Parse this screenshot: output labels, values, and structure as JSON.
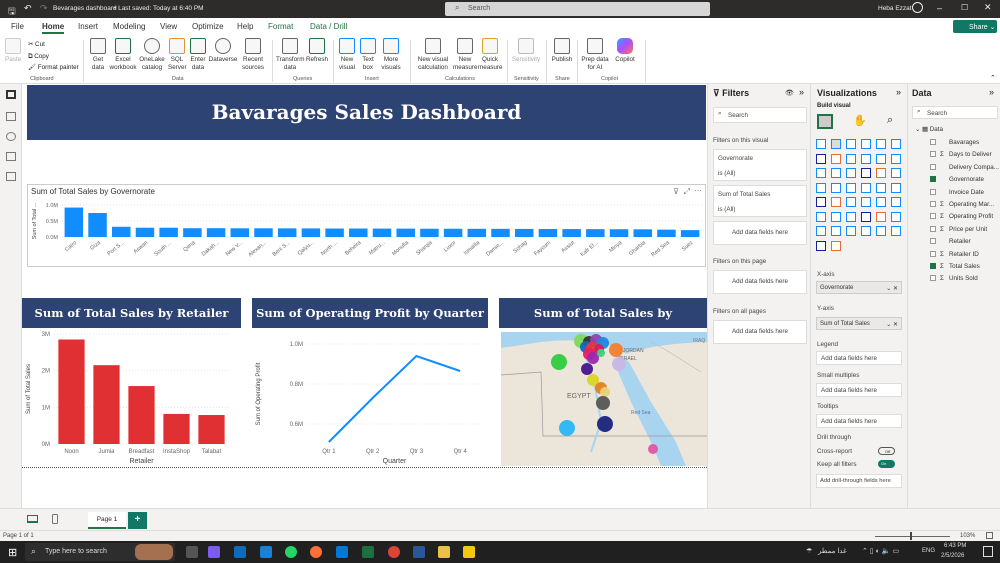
{
  "titlebar": {
    "doc_title": "Bevarages dashboard",
    "saved": "• Last saved: Today at 6:40 PM",
    "search_placeholder": "Search",
    "user": "Heba Ezzat"
  },
  "menu": {
    "tabs": [
      "File",
      "Home",
      "Insert",
      "Modeling",
      "View",
      "Optimize",
      "Help",
      "Format",
      "Data / Drill"
    ],
    "active": "Home",
    "share": "Share"
  },
  "ribbon": {
    "items": [
      "Paste",
      "Get data",
      "Excel workbook",
      "OneLake catalog",
      "SQL Server",
      "Enter data",
      "Dataverse",
      "Recent sources",
      "Transform data",
      "Refresh",
      "New visual",
      "Text box",
      "More visuals",
      "New visual calculation",
      "New measure",
      "Quick measure",
      "Sensitivity",
      "Publish",
      "Prep data for AI",
      "Copilot"
    ],
    "clipboard": [
      "Cut",
      "Copy",
      "Format painter"
    ],
    "groups": [
      "Clipboard",
      "Data",
      "Queries",
      "Insert",
      "Calculations",
      "Sensitivity",
      "Share",
      "Copilot"
    ]
  },
  "report": {
    "title": "Bavarages Sales Dashboard",
    "retailer_banner": "Sum of Total Sales by Retailer",
    "quarter_banner": "Sum of Operating Profit by Quarter",
    "map_banner": "Sum of Total Sales by Governrate",
    "map_labels": [
      "EGYPT",
      "JORDAN",
      "ISRAEL",
      "IRAQ",
      "Red Sea"
    ]
  },
  "chart_data": [
    {
      "type": "bar",
      "title": "Sum of Total Sales by Governorate",
      "ylabel": "Sum of Total ...",
      "xlabel": "",
      "ylim": [
        0,
        1000000
      ],
      "yticks": [
        "0.0M",
        "0.5M",
        "1.0M"
      ],
      "color": "#118dff",
      "categories": [
        "Cairo",
        "Giza",
        "Port S...",
        "Aswan",
        "South ...",
        "Qena",
        "Dakah...",
        "New V...",
        "Alexan...",
        "Beni S...",
        "Qalyu...",
        "North ...",
        "Beheira",
        "Matru...",
        "Monufia",
        "Sharqia",
        "Luxor",
        "Ismailia",
        "Damie...",
        "Sohag",
        "Fayoum",
        "Assiut",
        "Kafr El...",
        "Minya",
        "Gharbia",
        "Red Sea",
        "Suez"
      ],
      "values": [
        920000,
        750000,
        320000,
        290000,
        290000,
        275000,
        275000,
        272000,
        272000,
        270000,
        268000,
        265000,
        265000,
        263000,
        262000,
        258000,
        258000,
        256000,
        255000,
        253000,
        250000,
        248000,
        246000,
        243000,
        240000,
        230000,
        215000
      ]
    },
    {
      "type": "bar",
      "title": "",
      "ylabel": "Sum of Total Sales",
      "xlabel": "Retailer",
      "ylim": [
        0,
        3000000
      ],
      "yticks": [
        "0M",
        "1M",
        "2M",
        "3M"
      ],
      "color": "#e03033",
      "categories": [
        "Noon",
        "Jumia",
        "Breadfast",
        "InstaShop",
        "Talabat"
      ],
      "values": [
        2850000,
        2150000,
        1580000,
        820000,
        790000
      ]
    },
    {
      "type": "line",
      "title": "",
      "ylabel": "Sum of Operating Profit",
      "xlabel": "Quarter",
      "ylim": [
        0.5,
        1.0
      ],
      "yticks": [
        "0.6M",
        "0.8M",
        "1.0M"
      ],
      "color": "#118dff",
      "categories": [
        "Qtr 1",
        "Qtr 2",
        "Qtr 3",
        "Qtr 4"
      ],
      "values": [
        510000,
        730000,
        940000,
        865000
      ]
    }
  ],
  "filters": {
    "title": "Filters",
    "search": "Search",
    "on_visual": "Filters on this visual",
    "cards": [
      {
        "name": "Governorate",
        "value": "is (All)"
      },
      {
        "name": "Sum of Total Sales",
        "value": "is (All)"
      }
    ],
    "add": "Add data fields here",
    "on_page": "Filters on this page",
    "on_all": "Filters on all pages"
  },
  "viz": {
    "title": "Visualizations",
    "build": "Build visual",
    "xaxis": "X-axis",
    "xfield": "Governorate",
    "yaxis": "Y-axis",
    "yfield": "Sum of Total Sales",
    "legend": "Legend",
    "small": "Small multiples",
    "tooltips": "Tooltips",
    "add": "Add data fields here",
    "drill": "Drill through",
    "cross": "Cross-report",
    "cross_state": "Off",
    "keep": "Keep all filters",
    "keep_state": "On",
    "add_drill": "Add drill-through fields here"
  },
  "datapane": {
    "title": "Data",
    "search": "Search",
    "table": "Data",
    "fields": [
      {
        "n": "Bavarages",
        "s": false,
        "c": false
      },
      {
        "n": "Days to Deliver",
        "s": true,
        "c": false
      },
      {
        "n": "Delivery Compa...",
        "s": false,
        "c": false
      },
      {
        "n": "Governorate",
        "s": false,
        "c": true
      },
      {
        "n": "Invoice Date",
        "s": false,
        "c": false
      },
      {
        "n": "Operating Mar...",
        "s": true,
        "c": false
      },
      {
        "n": "Operating Profit",
        "s": true,
        "c": false
      },
      {
        "n": "Price per Unit",
        "s": true,
        "c": false
      },
      {
        "n": "Retailer",
        "s": false,
        "c": false
      },
      {
        "n": "Retailer ID",
        "s": true,
        "c": false
      },
      {
        "n": "Total Sales",
        "s": true,
        "c": true
      },
      {
        "n": "Units Sold",
        "s": true,
        "c": false
      }
    ]
  },
  "pages": {
    "tab": "Page 1",
    "add": "+",
    "status": "Page 1 of 1",
    "zoom": "103%"
  },
  "taskbar": {
    "search": "Type here to search",
    "weather": "غدا ممطر",
    "lang": "ENG",
    "time": "6:43 PM",
    "date": "2/5/2026"
  }
}
